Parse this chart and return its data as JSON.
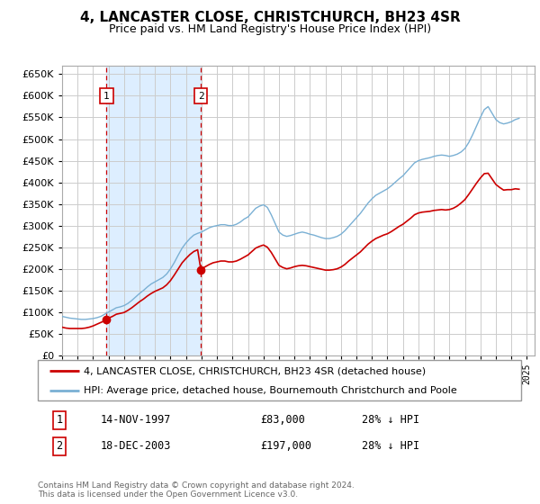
{
  "title": "4, LANCASTER CLOSE, CHRISTCHURCH, BH23 4SR",
  "subtitle": "Price paid vs. HM Land Registry's House Price Index (HPI)",
  "legend_line1": "4, LANCASTER CLOSE, CHRISTCHURCH, BH23 4SR (detached house)",
  "legend_line2": "HPI: Average price, detached house, Bournemouth Christchurch and Poole",
  "footnote": "Contains HM Land Registry data © Crown copyright and database right 2024.\nThis data is licensed under the Open Government Licence v3.0.",
  "sale1_date": "14-NOV-1997",
  "sale1_price": "£83,000",
  "sale1_hpi": "28% ↓ HPI",
  "sale2_date": "18-DEC-2003",
  "sale2_price": "£197,000",
  "sale2_hpi": "28% ↓ HPI",
  "sale1_year": 1997.87,
  "sale1_value": 83000,
  "sale2_year": 2003.96,
  "sale2_value": 197000,
  "ylim": [
    0,
    670000
  ],
  "xlim_start": 1995.0,
  "xlim_end": 2025.5,
  "red_color": "#cc0000",
  "blue_color": "#7ab0d4",
  "grid_color": "#cccccc",
  "sale_shade_color": "#ddeeff",
  "hpi_years": [
    1995.0,
    1995.25,
    1995.5,
    1995.75,
    1996.0,
    1996.25,
    1996.5,
    1996.75,
    1997.0,
    1997.25,
    1997.5,
    1997.75,
    1998.0,
    1998.25,
    1998.5,
    1998.75,
    1999.0,
    1999.25,
    1999.5,
    1999.75,
    2000.0,
    2000.25,
    2000.5,
    2000.75,
    2001.0,
    2001.25,
    2001.5,
    2001.75,
    2002.0,
    2002.25,
    2002.5,
    2002.75,
    2003.0,
    2003.25,
    2003.5,
    2003.75,
    2004.0,
    2004.25,
    2004.5,
    2004.75,
    2005.0,
    2005.25,
    2005.5,
    2005.75,
    2006.0,
    2006.25,
    2006.5,
    2006.75,
    2007.0,
    2007.25,
    2007.5,
    2007.75,
    2008.0,
    2008.25,
    2008.5,
    2008.75,
    2009.0,
    2009.25,
    2009.5,
    2009.75,
    2010.0,
    2010.25,
    2010.5,
    2010.75,
    2011.0,
    2011.25,
    2011.5,
    2011.75,
    2012.0,
    2012.25,
    2012.5,
    2012.75,
    2013.0,
    2013.25,
    2013.5,
    2013.75,
    2014.0,
    2014.25,
    2014.5,
    2014.75,
    2015.0,
    2015.25,
    2015.5,
    2015.75,
    2016.0,
    2016.25,
    2016.5,
    2016.75,
    2017.0,
    2017.25,
    2017.5,
    2017.75,
    2018.0,
    2018.25,
    2018.5,
    2018.75,
    2019.0,
    2019.25,
    2019.5,
    2019.75,
    2020.0,
    2020.25,
    2020.5,
    2020.75,
    2021.0,
    2021.25,
    2021.5,
    2021.75,
    2022.0,
    2022.25,
    2022.5,
    2022.75,
    2023.0,
    2023.25,
    2023.5,
    2023.75,
    2024.0,
    2024.25,
    2024.5
  ],
  "hpi_values": [
    90000,
    88000,
    86000,
    85000,
    84000,
    83000,
    83000,
    84000,
    85000,
    87000,
    90000,
    95000,
    100000,
    105000,
    110000,
    112000,
    115000,
    120000,
    127000,
    135000,
    143000,
    150000,
    158000,
    165000,
    170000,
    175000,
    180000,
    188000,
    200000,
    215000,
    232000,
    248000,
    260000,
    270000,
    278000,
    282000,
    285000,
    290000,
    295000,
    298000,
    300000,
    302000,
    302000,
    300000,
    300000,
    303000,
    308000,
    315000,
    320000,
    330000,
    340000,
    345000,
    348000,
    342000,
    325000,
    305000,
    285000,
    278000,
    275000,
    277000,
    280000,
    283000,
    285000,
    283000,
    280000,
    278000,
    275000,
    272000,
    270000,
    270000,
    272000,
    275000,
    280000,
    288000,
    298000,
    308000,
    318000,
    328000,
    340000,
    352000,
    362000,
    370000,
    375000,
    380000,
    385000,
    392000,
    400000,
    408000,
    415000,
    425000,
    435000,
    445000,
    450000,
    453000,
    455000,
    457000,
    460000,
    462000,
    463000,
    462000,
    460000,
    462000,
    465000,
    470000,
    478000,
    492000,
    510000,
    530000,
    550000,
    568000,
    575000,
    560000,
    545000,
    538000,
    535000,
    537000,
    540000,
    545000,
    548000
  ],
  "red_years": [
    1995.0,
    1995.25,
    1995.5,
    1995.75,
    1996.0,
    1996.25,
    1996.5,
    1996.75,
    1997.0,
    1997.25,
    1997.5,
    1997.75,
    1997.87,
    1998.0,
    1998.25,
    1998.5,
    1998.75,
    1999.0,
    1999.25,
    1999.5,
    1999.75,
    2000.0,
    2000.25,
    2000.5,
    2000.75,
    2001.0,
    2001.25,
    2001.5,
    2001.75,
    2002.0,
    2002.25,
    2002.5,
    2002.75,
    2003.0,
    2003.25,
    2003.5,
    2003.75,
    2003.96,
    2004.0,
    2004.25,
    2004.5,
    2004.75,
    2005.0,
    2005.25,
    2005.5,
    2005.75,
    2006.0,
    2006.25,
    2006.5,
    2006.75,
    2007.0,
    2007.25,
    2007.5,
    2007.75,
    2008.0,
    2008.25,
    2008.5,
    2008.75,
    2009.0,
    2009.25,
    2009.5,
    2009.75,
    2010.0,
    2010.25,
    2010.5,
    2010.75,
    2011.0,
    2011.25,
    2011.5,
    2011.75,
    2012.0,
    2012.25,
    2012.5,
    2012.75,
    2013.0,
    2013.25,
    2013.5,
    2013.75,
    2014.0,
    2014.25,
    2014.5,
    2014.75,
    2015.0,
    2015.25,
    2015.5,
    2015.75,
    2016.0,
    2016.25,
    2016.5,
    2016.75,
    2017.0,
    2017.25,
    2017.5,
    2017.75,
    2018.0,
    2018.25,
    2018.5,
    2018.75,
    2019.0,
    2019.25,
    2019.5,
    2019.75,
    2020.0,
    2020.25,
    2020.5,
    2020.75,
    2021.0,
    2021.25,
    2021.5,
    2021.75,
    2022.0,
    2022.25,
    2022.5,
    2022.75,
    2023.0,
    2023.25,
    2023.5,
    2023.75,
    2024.0,
    2024.25,
    2024.5
  ],
  "red_values": [
    65000,
    63000,
    62000,
    62000,
    62000,
    62000,
    63000,
    65000,
    68000,
    72000,
    76000,
    80000,
    83000,
    86000,
    90000,
    95000,
    97000,
    99000,
    104000,
    110000,
    117000,
    124000,
    130000,
    137000,
    143000,
    148000,
    152000,
    156000,
    163000,
    173000,
    186000,
    200000,
    214000,
    224000,
    233000,
    240000,
    244000,
    197000,
    200000,
    205000,
    210000,
    214000,
    216000,
    218000,
    218000,
    216000,
    216000,
    218000,
    222000,
    227000,
    232000,
    240000,
    248000,
    252000,
    255000,
    250000,
    238000,
    223000,
    208000,
    203000,
    200000,
    202000,
    205000,
    207000,
    208000,
    207000,
    205000,
    203000,
    201000,
    199000,
    197000,
    197000,
    198000,
    200000,
    204000,
    210000,
    218000,
    225000,
    232000,
    239000,
    248000,
    257000,
    264000,
    270000,
    274000,
    278000,
    281000,
    286000,
    292000,
    298000,
    303000,
    310000,
    317000,
    325000,
    329000,
    331000,
    332000,
    333000,
    335000,
    336000,
    337000,
    336000,
    337000,
    340000,
    345000,
    352000,
    360000,
    372000,
    385000,
    398000,
    410000,
    420000,
    421000,
    408000,
    395000,
    388000,
    382000,
    383000,
    383000,
    385000,
    384000
  ]
}
